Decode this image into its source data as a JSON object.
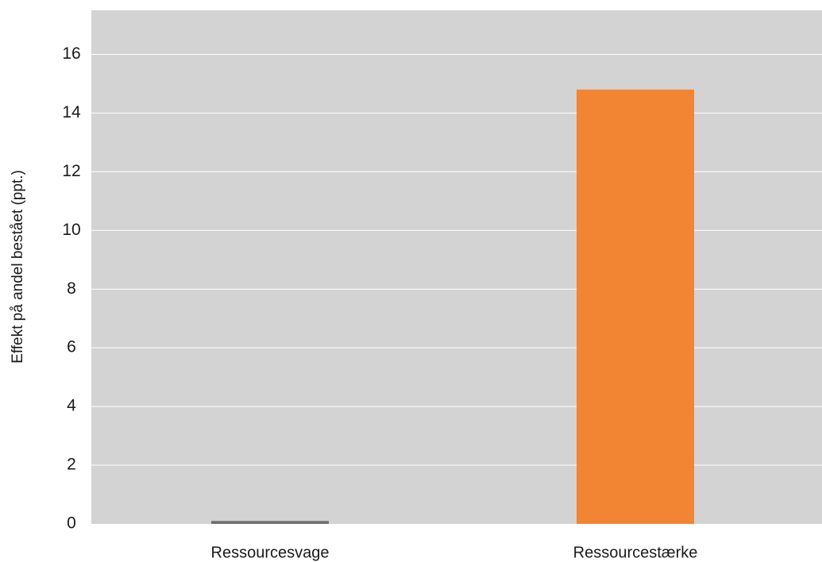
{
  "chart_data": {
    "type": "bar",
    "categories": [
      "Ressourcesvage",
      "Ressourcestærke"
    ],
    "values": [
      0.1,
      14.8
    ],
    "bar_colors": [
      "#707070",
      "#f28534"
    ],
    "title": "",
    "xlabel": "",
    "ylabel": "Effekt på andel bestået (ppt.)",
    "ylim": [
      0,
      17.5
    ],
    "yticks": [
      0,
      2,
      4,
      6,
      8,
      10,
      12,
      14,
      16
    ],
    "grid": true,
    "plot_background": "#d3d3d3",
    "gridline_color": "#ffffff",
    "legend": "none"
  }
}
